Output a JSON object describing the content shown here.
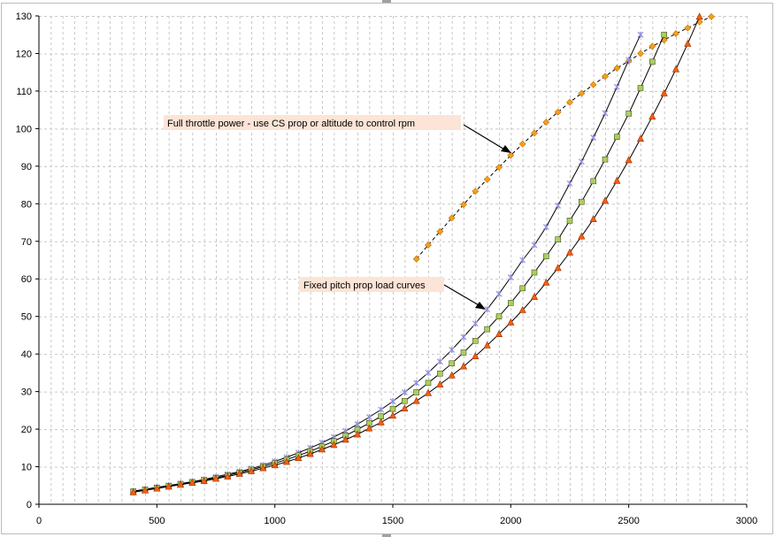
{
  "chart_data": {
    "type": "line",
    "title": "",
    "xlabel": "",
    "ylabel": "",
    "xlim": [
      0,
      3000
    ],
    "ylim": [
      0,
      130
    ],
    "x_ticks": [
      0,
      500,
      1000,
      1500,
      2000,
      2500,
      3000
    ],
    "y_ticks": [
      0,
      10,
      20,
      30,
      40,
      50,
      60,
      70,
      80,
      90,
      100,
      110,
      120,
      130
    ],
    "x_tick_labels": [
      "0",
      "500",
      "1000",
      "1500",
      "2000",
      "2500",
      "3000"
    ],
    "y_tick_labels": [
      "0",
      "10",
      "20",
      "30",
      "40",
      "50",
      "60",
      "70",
      "80",
      "90",
      "100",
      "110",
      "120",
      "130"
    ],
    "grid": {
      "horizontal": true,
      "vertical": true,
      "vertical_minor_step": 50,
      "style": "dashed"
    },
    "legend": "none",
    "series": [
      {
        "marker": "diamond",
        "color": "#f5a01a",
        "line_style": "dashed",
        "x_start": 1600,
        "x_step": 50,
        "values": [
          65.3,
          69.0,
          72.6,
          76.2,
          79.8,
          83.3,
          86.5,
          89.7,
          92.9,
          95.9,
          98.8,
          101.7,
          104.4,
          107.0,
          109.4,
          111.7,
          113.9,
          116.1,
          118.0,
          120.0,
          121.9,
          123.6,
          125.3,
          126.8,
          128.4,
          129.8
        ]
      },
      {
        "marker": "asterisk",
        "color": "#8f8fd8",
        "line_style": "solid",
        "x_start": 400,
        "x_step": 50,
        "values": [
          3.5,
          4.0,
          4.5,
          5.0,
          5.5,
          6.0,
          6.6,
          7.3,
          8.0,
          8.7,
          9.5,
          10.4,
          11.4,
          12.5,
          13.7,
          15.0,
          16.4,
          17.9,
          19.5,
          21.3,
          23.2,
          25.2,
          27.4,
          29.8,
          32.3,
          35.0,
          38.0,
          41.1,
          44.5,
          48.1,
          51.9,
          56.0,
          60.4,
          65.0,
          69.0,
          73.8,
          79.5,
          85.4,
          91.2,
          97.6,
          104.1,
          111.1,
          118.3,
          125.0
        ]
      },
      {
        "marker": "square",
        "color": "#a8d060",
        "line_style": "solid",
        "x_start": 400,
        "x_step": 50,
        "values": [
          3.4,
          3.9,
          4.4,
          4.9,
          5.4,
          5.9,
          6.4,
          7.0,
          7.7,
          8.4,
          9.2,
          10.0,
          10.9,
          11.9,
          13.0,
          14.1,
          15.4,
          16.8,
          18.3,
          19.9,
          21.6,
          23.4,
          25.4,
          27.5,
          29.8,
          32.3,
          34.8,
          37.5,
          40.4,
          43.5,
          46.6,
          50.0,
          53.6,
          57.5,
          61.7,
          66.0,
          70.5,
          75.5,
          80.5,
          86.0,
          91.8,
          97.8,
          104.0,
          110.8,
          117.8,
          125.0
        ]
      },
      {
        "marker": "triangle",
        "color": "#f06010",
        "line_style": "solid",
        "x_start": 400,
        "x_step": 50,
        "values": [
          3.2,
          3.7,
          4.2,
          4.7,
          5.2,
          5.7,
          6.2,
          6.8,
          7.4,
          8.1,
          8.8,
          9.6,
          10.4,
          11.3,
          12.3,
          13.4,
          14.6,
          15.8,
          17.2,
          18.6,
          20.2,
          21.8,
          23.6,
          25.5,
          27.5,
          29.6,
          31.9,
          34.3,
          36.7,
          39.4,
          42.3,
          45.3,
          48.4,
          51.7,
          55.2,
          59.0,
          62.9,
          67.0,
          71.3,
          75.9,
          80.8,
          86.1,
          91.6,
          97.3,
          103.2,
          109.4,
          115.8,
          122.6,
          129.8
        ]
      }
    ],
    "annotations": [
      {
        "text": "Full throttle power  - use CS prop or altitude to  control rpm",
        "arrow_to": [
          2000,
          93
        ]
      },
      {
        "text": "Fixed pitch prop load curves",
        "arrow_to": [
          1900,
          51.5
        ]
      }
    ]
  }
}
